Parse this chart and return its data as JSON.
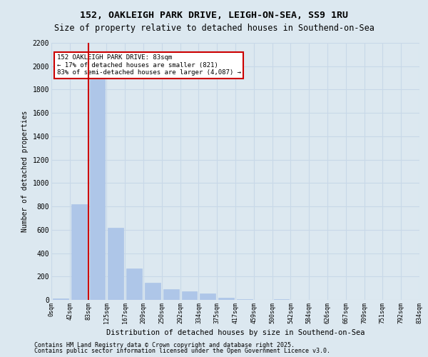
{
  "title_line1": "152, OAKLEIGH PARK DRIVE, LEIGH-ON-SEA, SS9 1RU",
  "title_line2": "Size of property relative to detached houses in Southend-on-Sea",
  "xlabel": "Distribution of detached houses by size in Southend-on-Sea",
  "ylabel": "Number of detached properties",
  "annotation_title": "152 OAKLEIGH PARK DRIVE: 83sqm",
  "annotation_line2": "← 17% of detached houses are smaller (821)",
  "annotation_line3": "83% of semi-detached houses are larger (4,087) →",
  "footer_line1": "Contains HM Land Registry data © Crown copyright and database right 2025.",
  "footer_line2": "Contains public sector information licensed under the Open Government Licence v3.0.",
  "bar_color": "#aec6e8",
  "bar_edgecolor": "#aec6e8",
  "vline_color": "#cc0000",
  "annotation_box_edgecolor": "#cc0000",
  "annotation_box_facecolor": "#ffffff",
  "grid_color": "#c8d8e8",
  "background_color": "#dce8f0",
  "plot_bg_color": "#dce8f0",
  "ylim": [
    0,
    2200
  ],
  "yticks": [
    0,
    200,
    400,
    600,
    800,
    1000,
    1200,
    1400,
    1600,
    1800,
    2000,
    2200
  ],
  "bin_labels": [
    "0sqm",
    "42sqm",
    "83sqm",
    "125sqm",
    "167sqm",
    "209sqm",
    "250sqm",
    "292sqm",
    "334sqm",
    "375sqm",
    "417sqm",
    "459sqm",
    "500sqm",
    "542sqm",
    "584sqm",
    "626sqm",
    "667sqm",
    "709sqm",
    "751sqm",
    "792sqm",
    "834sqm"
  ],
  "bar_values": [
    15,
    821,
    1890,
    620,
    270,
    145,
    90,
    75,
    55,
    20,
    5,
    0,
    5,
    0,
    0,
    0,
    0,
    0,
    0,
    0
  ],
  "vline_x": 1.5
}
